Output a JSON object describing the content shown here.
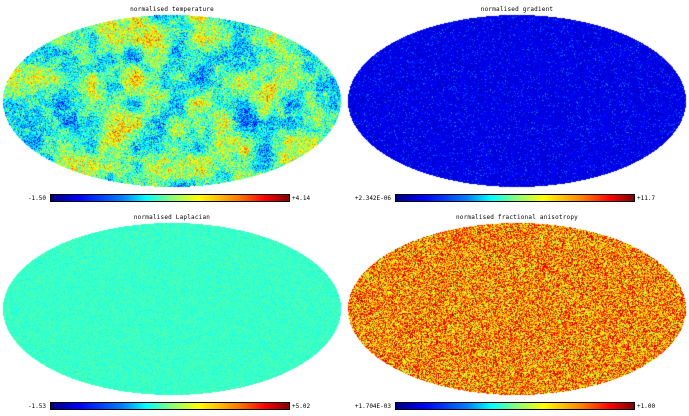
{
  "panels": [
    {
      "title": "normalised temperature",
      "min_label": "-1.50",
      "max_label": "+4.14",
      "map_style": "cmb",
      "mean_level": 0.47,
      "noise_level": 0.22,
      "structure_level": 0.9,
      "seed": 11
    },
    {
      "title": "normalised gradient",
      "min_label": "+2.342E-06",
      "max_label": "+11.7",
      "map_style": "gradient",
      "mean_level": 0.1,
      "noise_level": 0.06,
      "structure_level": 0.0,
      "seed": 23
    },
    {
      "title": "normalised Laplacian",
      "min_label": "-1.53",
      "max_label": "+5.02",
      "map_style": "laplacian",
      "mean_level": 0.43,
      "noise_level": 0.05,
      "structure_level": 0.0,
      "seed": 37
    },
    {
      "title": "normalised fractional anisotropy",
      "min_label": "+1.704E-03",
      "max_label": "+1.00",
      "map_style": "anisotropy",
      "mean_level": 0.78,
      "noise_level": 0.22,
      "structure_level": 0.0,
      "seed": 53
    }
  ],
  "colormap": [
    "#000080",
    "#0000ff",
    "#0080ff",
    "#00ffff",
    "#80ff80",
    "#ffff00",
    "#ff8000",
    "#ff0000",
    "#800000"
  ]
}
